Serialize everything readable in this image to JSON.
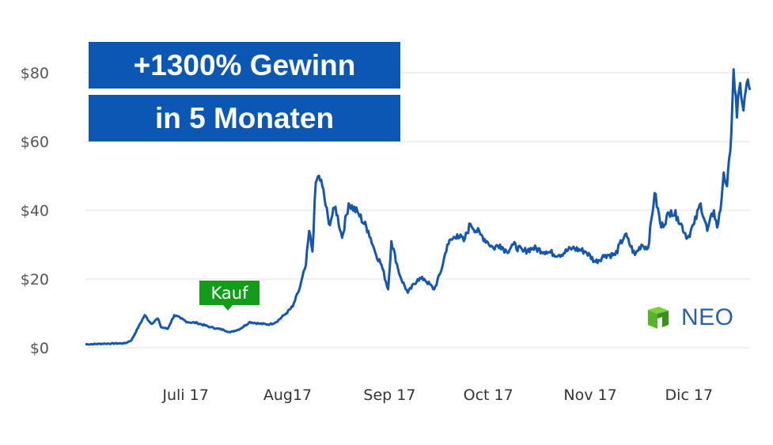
{
  "chart_data": {
    "type": "line",
    "title": "",
    "xlabel": "",
    "ylabel": "",
    "ylim": [
      0,
      80
    ],
    "yticks": [
      "$0",
      "$20",
      "$40",
      "$60",
      "$80"
    ],
    "yticks_values": [
      0,
      20,
      40,
      60,
      80
    ],
    "xticks": [
      "Juli 17",
      "Aug17",
      "Sep 17",
      "Oct 17",
      "Nov 17",
      "Dic 17"
    ],
    "xticks_values": [
      "2017-07-01",
      "2017-08-01",
      "2017-09-01",
      "2017-10-01",
      "2017-11-01",
      "2017-12-01"
    ],
    "xlim": [
      "2017-06-02",
      "2017-12-21"
    ],
    "grid": true,
    "line_color": "#1656ac",
    "series": [
      {
        "name": "NEO",
        "x": [
          "2017-06-02",
          "2017-06-08",
          "2017-06-14",
          "2017-06-16",
          "2017-06-20",
          "2017-06-22",
          "2017-06-24",
          "2017-06-25",
          "2017-06-27",
          "2017-06-29",
          "2017-07-01",
          "2017-07-03",
          "2017-07-06",
          "2017-07-10",
          "2017-07-14",
          "2017-07-16",
          "2017-07-19",
          "2017-07-22",
          "2017-07-25",
          "2017-07-28",
          "2017-07-30",
          "2017-08-02",
          "2017-08-04",
          "2017-08-06",
          "2017-08-08",
          "2017-08-09",
          "2017-08-10",
          "2017-08-11",
          "2017-08-12",
          "2017-08-13",
          "2017-08-15",
          "2017-08-17",
          "2017-08-19",
          "2017-08-21",
          "2017-08-24",
          "2017-08-27",
          "2017-08-29",
          "2017-08-31",
          "2017-09-02",
          "2017-09-03",
          "2017-09-05",
          "2017-09-06",
          "2017-09-08",
          "2017-09-11",
          "2017-09-13",
          "2017-09-16",
          "2017-09-18",
          "2017-09-20",
          "2017-09-23",
          "2017-09-25",
          "2017-09-27",
          "2017-09-30",
          "2017-10-02",
          "2017-10-04",
          "2017-10-06",
          "2017-10-08",
          "2017-10-10",
          "2017-10-13",
          "2017-10-16",
          "2017-10-20",
          "2017-10-24",
          "2017-10-28",
          "2017-11-01",
          "2017-11-04",
          "2017-11-07",
          "2017-11-10",
          "2017-11-13",
          "2017-11-16",
          "2017-11-18",
          "2017-11-20",
          "2017-11-22",
          "2017-11-24",
          "2017-11-27",
          "2017-11-29",
          "2017-12-02",
          "2017-12-04",
          "2017-12-06",
          "2017-12-08",
          "2017-12-10",
          "2017-12-11",
          "2017-12-12",
          "2017-12-13",
          "2017-12-14",
          "2017-12-15",
          "2017-12-16",
          "2017-12-17",
          "2017-12-18",
          "2017-12-19",
          "2017-12-20",
          "2017-12-21"
        ],
        "values": [
          1,
          1.2,
          1.3,
          2.2,
          9.5,
          7,
          8.5,
          6,
          5.5,
          9.5,
          8.5,
          7.5,
          7.2,
          6,
          5.2,
          4.5,
          5.5,
          7.5,
          7,
          6.8,
          7.5,
          10,
          12,
          17,
          24,
          34,
          28,
          48,
          50,
          47,
          36,
          41,
          32,
          42,
          39,
          34,
          28,
          24,
          17,
          31,
          23,
          20,
          16,
          20,
          20,
          17,
          22,
          30,
          33,
          31,
          36,
          33,
          31,
          29,
          30,
          28,
          30,
          28,
          29,
          28,
          27,
          29,
          28,
          25,
          27,
          27,
          33,
          27,
          30,
          29,
          45,
          35,
          40,
          38,
          32,
          36,
          42,
          34,
          40,
          35,
          40,
          51,
          47,
          57,
          81,
          67,
          77,
          69,
          77,
          75
        ]
      }
    ],
    "annotations": {
      "headline_1": "+1300% Gewinn",
      "headline_2": "in 5 Monaten",
      "buy_label": "Kauf",
      "buy_point": {
        "x": "2017-07-13",
        "y": 5.5
      }
    },
    "logo": {
      "text": "NEO",
      "color": "#2a5fa8",
      "icon": "neo-cube-icon",
      "icon_colors": [
        "#58b32a",
        "#3b8d1c"
      ]
    }
  },
  "colors": {
    "banner": "#0b57b3",
    "buy_badge": "#139b1b",
    "grid": "#e2e2e2"
  }
}
